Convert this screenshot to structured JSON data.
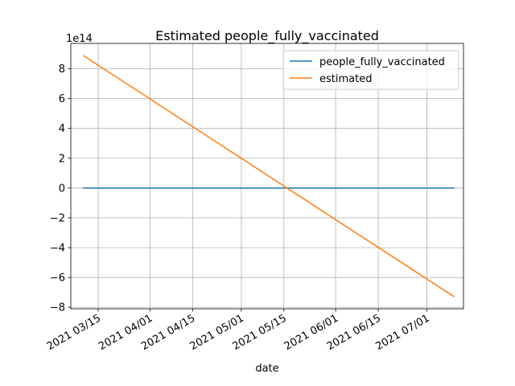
{
  "chart_data": {
    "type": "line",
    "title": "Estimated people_fully_vaccinated",
    "xlabel": "date",
    "ylabel": "",
    "y_offset_label": "1e14",
    "xlim": [
      "2021-03-06",
      "2021-07-13"
    ],
    "ylim": [
      -810000000000000.0,
      970000000000000.0
    ],
    "grid": true,
    "legend_position": "top-right",
    "x_ticks": [
      "2021-03-15",
      "2021-04-01",
      "2021-04-15",
      "2021-05-01",
      "2021-05-15",
      "2021-06-01",
      "2021-06-15",
      "2021-07-01"
    ],
    "x_tick_labels": [
      "2021 03/15",
      "2021 04/01",
      "2021 04/15",
      "2021 05/01",
      "2021 05/15",
      "2021 06/01",
      "2021 06/15",
      "2021 07/01"
    ],
    "y_ticks": [
      -800000000000000.0,
      -600000000000000.0,
      -400000000000000.0,
      -200000000000000.0,
      0,
      200000000000000.0,
      400000000000000.0,
      600000000000000.0,
      800000000000000.0
    ],
    "y_tick_labels": [
      "−8",
      "−6",
      "−4",
      "−2",
      "0",
      "2",
      "4",
      "6",
      "8"
    ],
    "series": [
      {
        "name": "people_fully_vaccinated",
        "color": "#1f77b4",
        "x": [
          "2021-03-10",
          "2021-07-10"
        ],
        "y": [
          0,
          0
        ]
      },
      {
        "name": "estimated",
        "color": "#ff7f0e",
        "x": [
          "2021-03-10",
          "2021-07-10"
        ],
        "y": [
          890000000000000.0,
          -730000000000000.0
        ]
      }
    ]
  }
}
